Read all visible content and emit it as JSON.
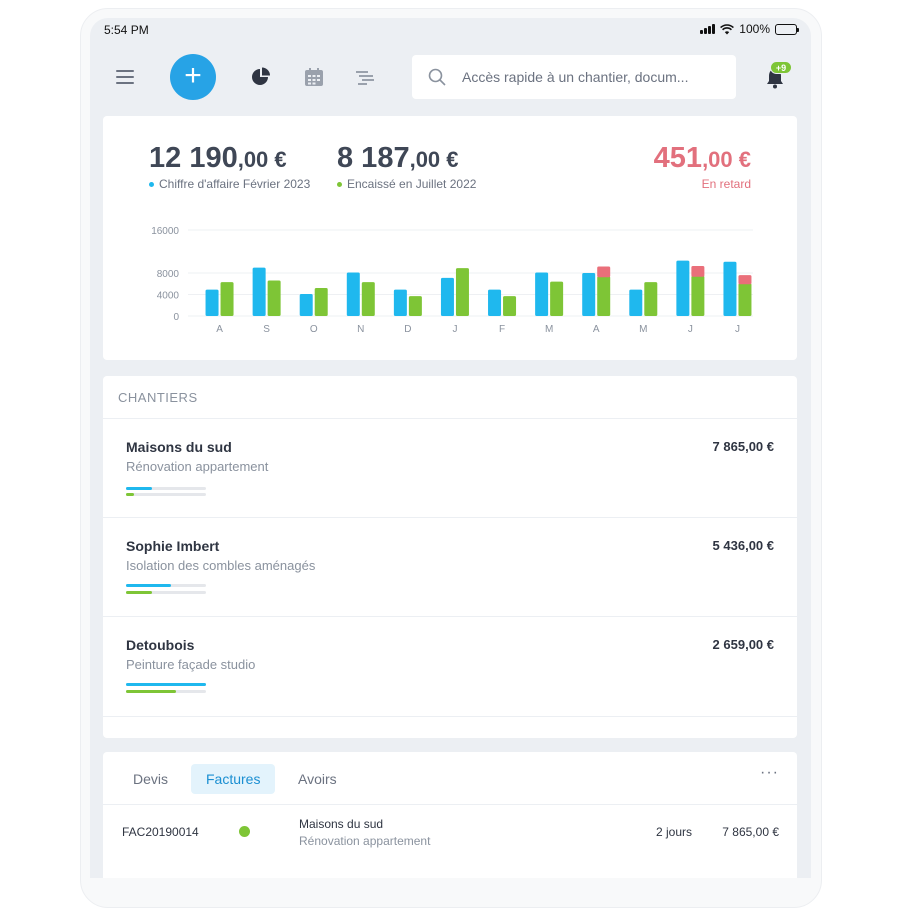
{
  "status_bar": {
    "time": "5:54 PM",
    "battery": "100%"
  },
  "toolbar": {
    "search_placeholder": "Accès rapide à un chantier, docum...",
    "notifications_badge": "+9"
  },
  "kpis": {
    "revenue": {
      "int": "12 190",
      "dec": ",00 €",
      "label": "Chiffre d'affaire Février 2023",
      "color": "#1fb8ee"
    },
    "collected": {
      "int": "8 187",
      "dec": ",00 €",
      "label": "Encaissé en Juillet 2022",
      "color": "#7ec536"
    },
    "late": {
      "int": "451",
      "dec": ",00 €",
      "label": "En retard",
      "color": "#e2707d"
    }
  },
  "chart_data": {
    "type": "bar",
    "categories": [
      "A",
      "S",
      "O",
      "N",
      "D",
      "J",
      "F",
      "M",
      "A",
      "M",
      "J",
      "J"
    ],
    "yticks": [
      0,
      4000,
      8000,
      16000
    ],
    "ylim": [
      0,
      16000
    ],
    "series": [
      {
        "color": "#1fb8ee",
        "values": [
          4900,
          9000,
          4100,
          8100,
          4900,
          7100,
          4900,
          8100,
          8000,
          4900,
          10300,
          10100
        ]
      },
      {
        "color": "#7ec536",
        "values": [
          6300,
          6600,
          5200,
          6300,
          3700,
          8900,
          3700,
          6400,
          7400,
          6300,
          7500,
          6100
        ]
      },
      {
        "color": "#ea6f7a",
        "values": [
          0,
          0,
          0,
          0,
          0,
          0,
          0,
          0,
          1800,
          0,
          1800,
          1500
        ]
      }
    ],
    "grid": true
  },
  "chantiers": {
    "title": "CHANTIERS",
    "items": [
      {
        "name": "Maisons du sud",
        "sub": "Rénovation appartement",
        "amount": "7 865,00 €",
        "progress_blue": 0.32,
        "progress_green": 0.1
      },
      {
        "name": "Sophie Imbert",
        "sub": "Isolation des combles aménagés",
        "amount": "5 436,00 €",
        "progress_blue": 0.56,
        "progress_green": 0.32
      },
      {
        "name": "Detoubois",
        "sub": "Peinture façade studio",
        "amount": "2 659,00 €",
        "progress_blue": 1.0,
        "progress_green": 0.63
      }
    ]
  },
  "documents": {
    "tabs": [
      "Devis",
      "Factures",
      "Avoirs"
    ],
    "active_tab": "Factures",
    "more": "···",
    "rows": [
      {
        "ref": "FAC20190014",
        "status_color": "#7ec536",
        "name": "Maisons du sud",
        "sub": "Rénovation appartement",
        "delay": "2 jours",
        "amount": "7 865,00 €"
      }
    ]
  }
}
